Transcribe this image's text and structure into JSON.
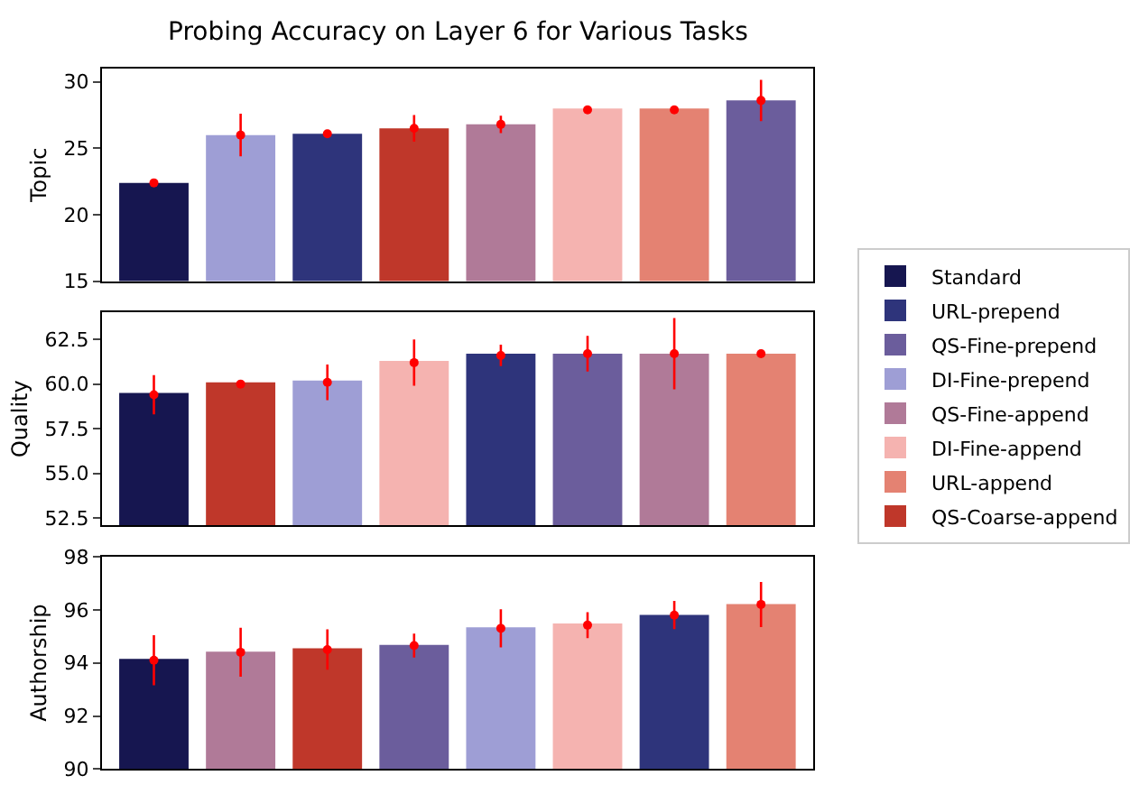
{
  "chart_data": [
    {
      "type": "bar",
      "title": "Probing Accuracy on Layer 6 for Various Tasks",
      "ylabel": "Topic",
      "categories": [
        null,
        null,
        null,
        null,
        null,
        null,
        null,
        null
      ],
      "ylim": [
        15,
        31.0
      ],
      "yticks": [
        15,
        20,
        25,
        30
      ],
      "legend": "right",
      "marker": "circle",
      "series": [
        {
          "name": "Standard",
          "color": "#161650",
          "values": [
            22.4,
            null,
            null,
            null,
            null,
            null,
            null,
            null
          ]
        },
        {
          "name": "URL-prepend",
          "color": "#2e347b",
          "values": [
            null,
            null,
            26.1,
            null,
            null,
            null,
            null,
            null
          ]
        },
        {
          "name": "QS-Fine-prepend",
          "color": "#6b5d9c",
          "values": [
            null,
            null,
            null,
            null,
            null,
            null,
            null,
            28.6
          ]
        },
        {
          "name": "DI-Fine-prepend",
          "color": "#9e9ed5",
          "values": [
            null,
            26.0,
            null,
            null,
            null,
            null,
            null,
            null
          ]
        },
        {
          "name": "QS-Fine-append",
          "color": "#b07a98",
          "values": [
            null,
            null,
            null,
            null,
            26.8,
            null,
            null,
            null
          ]
        },
        {
          "name": "DI-Fine-append",
          "color": "#f5b3b0",
          "values": [
            null,
            null,
            null,
            null,
            null,
            28.0,
            null,
            null
          ]
        },
        {
          "name": "URL-append",
          "color": "#e48272",
          "values": [
            null,
            null,
            null,
            null,
            null,
            null,
            28.0,
            null
          ]
        },
        {
          "name": "QS-Coarse-append",
          "color": "#bf372a",
          "values": [
            null,
            null,
            null,
            26.5,
            null,
            null,
            null,
            null
          ]
        },
        {
          "type": "scatter",
          "color": "#ff0000",
          "values": [
            22.4,
            26.0,
            26.1,
            26.5,
            26.8,
            27.9,
            27.9,
            28.6
          ],
          "errors": [
            0.3,
            1.6,
            0.25,
            1.0,
            0.65,
            0.1,
            0.1,
            1.55
          ]
        }
      ]
    },
    {
      "type": "bar",
      "ylabel": "Quality",
      "categories": [
        null,
        null,
        null,
        null,
        null,
        null,
        null,
        null
      ],
      "ylim": [
        52.1,
        64.0
      ],
      "yticks": [
        {
          "value": 52.5,
          "label": "52.5"
        },
        {
          "value": 55,
          "label": "55.0"
        },
        {
          "value": 57.5,
          "label": "57.5"
        },
        {
          "value": 60,
          "label": "60.0"
        },
        {
          "value": 62.5,
          "label": "62.5"
        }
      ],
      "legend": "right",
      "marker": "circle",
      "series": [
        {
          "name": "Standard",
          "color": "#161650",
          "values": [
            59.5,
            null,
            null,
            null,
            null,
            null,
            null,
            null
          ]
        },
        {
          "name": "QS-Coarse-append",
          "color": "#bf372a",
          "values": [
            null,
            60.1,
            null,
            null,
            null,
            null,
            null,
            null
          ]
        },
        {
          "name": "DI-Fine-prepend",
          "color": "#9e9ed5",
          "values": [
            null,
            null,
            60.2,
            null,
            null,
            null,
            null,
            null
          ]
        },
        {
          "name": "DI-Fine-append",
          "color": "#f5b3b0",
          "values": [
            null,
            null,
            null,
            61.3,
            null,
            null,
            null,
            null
          ]
        },
        {
          "name": "URL-prepend",
          "color": "#2e347b",
          "values": [
            null,
            null,
            null,
            null,
            61.7,
            null,
            null,
            null
          ]
        },
        {
          "name": "QS-Fine-prepend",
          "color": "#6b5d9c",
          "values": [
            null,
            null,
            null,
            null,
            null,
            61.7,
            null,
            null
          ]
        },
        {
          "name": "QS-Fine-append",
          "color": "#b07a98",
          "values": [
            null,
            null,
            null,
            null,
            null,
            null,
            61.7,
            null
          ]
        },
        {
          "name": "URL-append",
          "color": "#e48272",
          "values": [
            null,
            null,
            null,
            null,
            null,
            null,
            null,
            61.7
          ]
        },
        {
          "type": "scatter",
          "color": "#ff0000",
          "values": [
            59.4,
            60.0,
            60.1,
            61.2,
            61.6,
            61.7,
            61.7,
            61.7
          ],
          "errors": [
            1.1,
            0.2,
            1.0,
            1.3,
            0.6,
            1.0,
            2.0,
            0.2
          ]
        }
      ]
    },
    {
      "type": "bar",
      "ylabel": "Authorship",
      "categories": [
        null,
        null,
        null,
        null,
        null,
        null,
        null,
        null
      ],
      "ylim": [
        90,
        98
      ],
      "yticks": [
        90,
        92,
        94,
        96,
        98
      ],
      "legend": "right",
      "marker": "circle",
      "series": [
        {
          "name": "Standard",
          "color": "#161650",
          "values": [
            94.15,
            null,
            null,
            null,
            null,
            null,
            null,
            null
          ]
        },
        {
          "name": "QS-Fine-append",
          "color": "#b07a98",
          "values": [
            null,
            94.42,
            null,
            null,
            null,
            null,
            null,
            null
          ]
        },
        {
          "name": "QS-Coarse-append",
          "color": "#bf372a",
          "values": [
            null,
            null,
            94.55,
            null,
            null,
            null,
            null,
            null
          ]
        },
        {
          "name": "QS-Fine-prepend",
          "color": "#6b5d9c",
          "values": [
            null,
            null,
            null,
            94.68,
            null,
            null,
            null,
            null
          ]
        },
        {
          "name": "DI-Fine-prepend",
          "color": "#9e9ed5",
          "values": [
            null,
            null,
            null,
            null,
            95.34,
            null,
            null,
            null
          ]
        },
        {
          "name": "DI-Fine-append",
          "color": "#f5b3b0",
          "values": [
            null,
            null,
            null,
            null,
            null,
            95.48,
            null,
            null
          ]
        },
        {
          "name": "URL-prepend",
          "color": "#2e347b",
          "values": [
            null,
            null,
            null,
            null,
            null,
            null,
            95.81,
            null
          ]
        },
        {
          "name": "URL-append",
          "color": "#e48272",
          "values": [
            null,
            null,
            null,
            null,
            null,
            null,
            null,
            96.21
          ]
        },
        {
          "type": "scatter",
          "color": "#ff0000",
          "values": [
            94.1,
            94.4,
            94.5,
            94.65,
            95.3,
            95.42,
            95.8,
            96.2
          ],
          "errors": [
            0.94,
            0.92,
            0.76,
            0.45,
            0.72,
            0.49,
            0.53,
            0.85
          ]
        }
      ]
    }
  ]
}
